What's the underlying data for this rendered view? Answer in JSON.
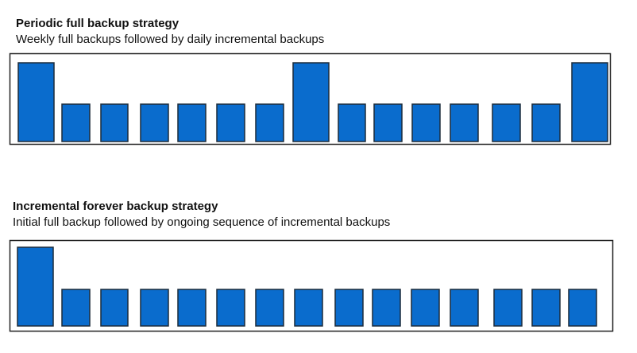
{
  "sections": [
    {
      "title": "Periodic full backup strategy",
      "subtitle": "Weekly full backups followed by daily incremental backups",
      "sequence": [
        "full",
        "incremental",
        "incremental",
        "incremental",
        "incremental",
        "incremental",
        "incremental",
        "full",
        "incremental",
        "incremental",
        "incremental",
        "incremental",
        "incremental",
        "incremental",
        "full"
      ]
    },
    {
      "title": "Incremental forever backup strategy",
      "subtitle": "Initial full backup followed by ongoing sequence of incremental backups",
      "sequence": [
        "full",
        "incremental",
        "incremental",
        "incremental",
        "incremental",
        "incremental",
        "incremental",
        "incremental",
        "incremental",
        "incremental",
        "incremental",
        "incremental",
        "incremental",
        "incremental",
        "incremental"
      ]
    }
  ],
  "colors": {
    "bar_fill": "#0a6ccd",
    "bar_stroke": "#1c2b3a",
    "frame_stroke": "#222222"
  }
}
